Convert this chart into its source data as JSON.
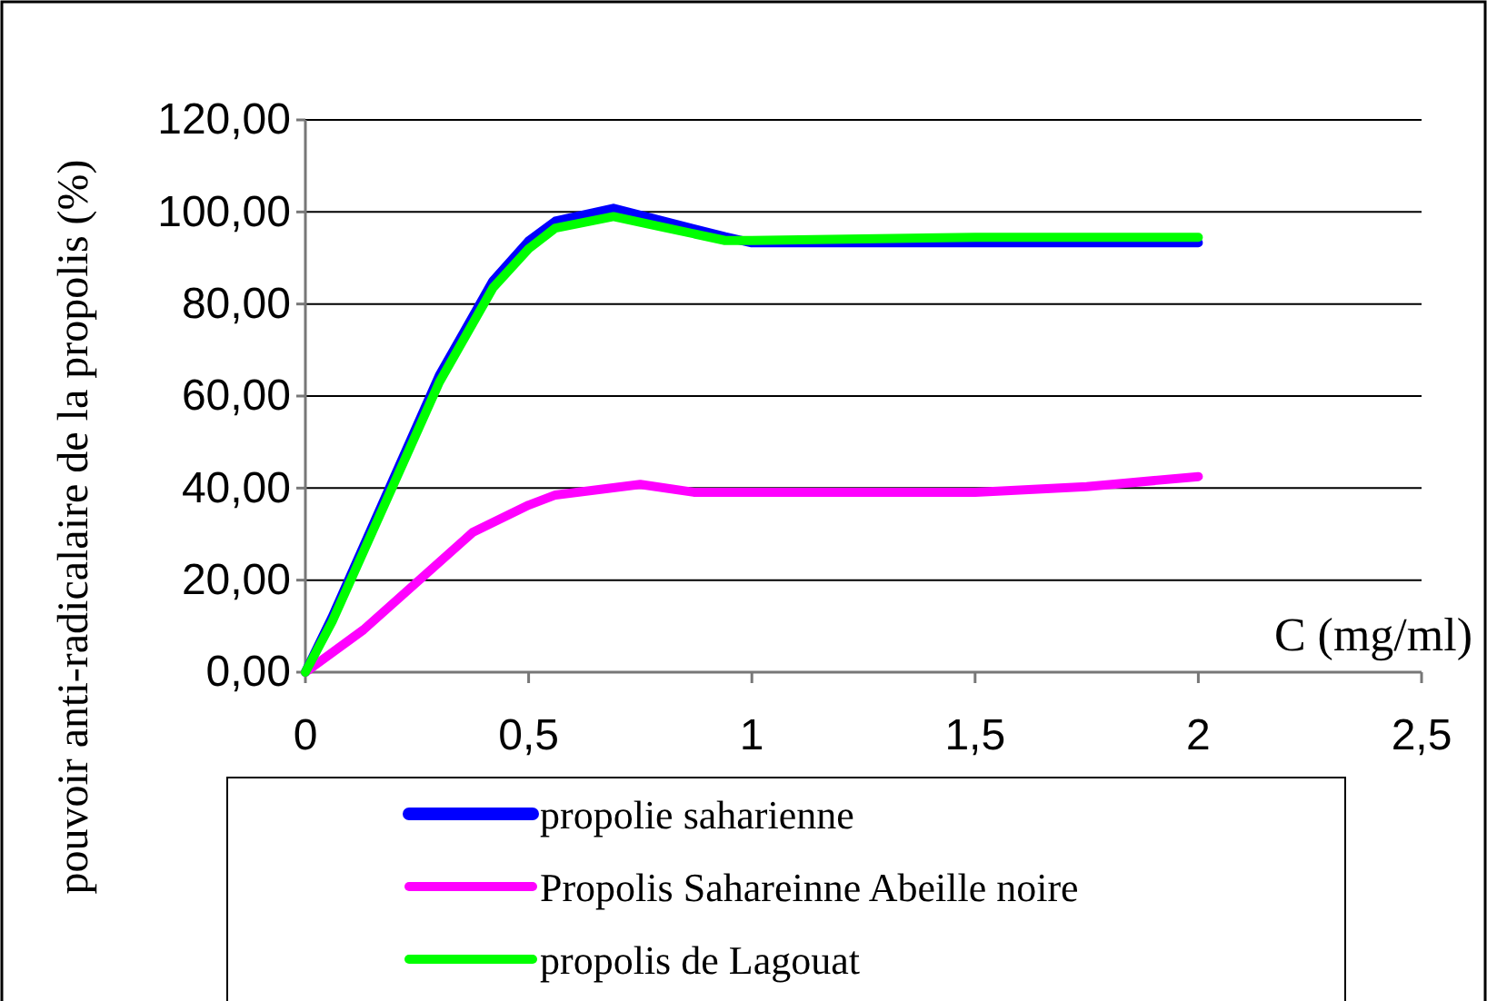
{
  "chart_data": {
    "type": "line",
    "xlabel": "C (mg/ml)",
    "ylabel": "pouvoir anti-radicalaire de la propolis (%)",
    "xlim": [
      0,
      2.5
    ],
    "xticks": [
      {
        "value": 0,
        "label": "0"
      },
      {
        "value": 0.5,
        "label": "0,5"
      },
      {
        "value": 1,
        "label": "1"
      },
      {
        "value": 1.5,
        "label": "1,5"
      },
      {
        "value": 2,
        "label": "2"
      },
      {
        "value": 2.5,
        "label": "2,5"
      }
    ],
    "ylim": [
      0,
      120
    ],
    "yticks": [
      {
        "value": 0,
        "label": "0,00"
      },
      {
        "value": 20,
        "label": "20,00"
      },
      {
        "value": 40,
        "label": "40,00"
      },
      {
        "value": 60,
        "label": "60,00"
      },
      {
        "value": 80,
        "label": "80,00"
      },
      {
        "value": 100,
        "label": "100,00"
      },
      {
        "value": 120,
        "label": "120,00"
      }
    ],
    "grid": "y",
    "legend": "bottom",
    "marker": "none",
    "line_style": "solid",
    "series": [
      {
        "name": "propolie saharienne",
        "color": "#0000ff",
        "x": [
          0,
          0.06,
          0.3,
          0.42,
          0.5,
          0.56,
          0.69,
          0.94,
          1,
          1.5,
          2
        ],
        "values": [
          0,
          12,
          64.5,
          85,
          93.7,
          98,
          100.8,
          94.6,
          93.3,
          93.3,
          93.3
        ]
      },
      {
        "name": "Propolis Sahareinne  Abeille noire",
        "color": "#ff00ff",
        "x": [
          0,
          0.13,
          0.375,
          0.5,
          0.56,
          0.75,
          0.87,
          1,
          1.5,
          1.75,
          2
        ],
        "values": [
          0,
          9.2,
          30.4,
          36.3,
          38.5,
          40.8,
          39.1,
          39.1,
          39.1,
          40.3,
          42.5
        ]
      },
      {
        "name": "propolis de Lagouat",
        "color": "#00ff00",
        "x": [
          0,
          0.06,
          0.3,
          0.42,
          0.5,
          0.56,
          0.69,
          0.94,
          1,
          1.5,
          2
        ],
        "values": [
          0,
          11,
          63,
          83.5,
          92,
          96.5,
          99,
          93.8,
          93.8,
          94.5,
          94.5
        ]
      }
    ]
  }
}
